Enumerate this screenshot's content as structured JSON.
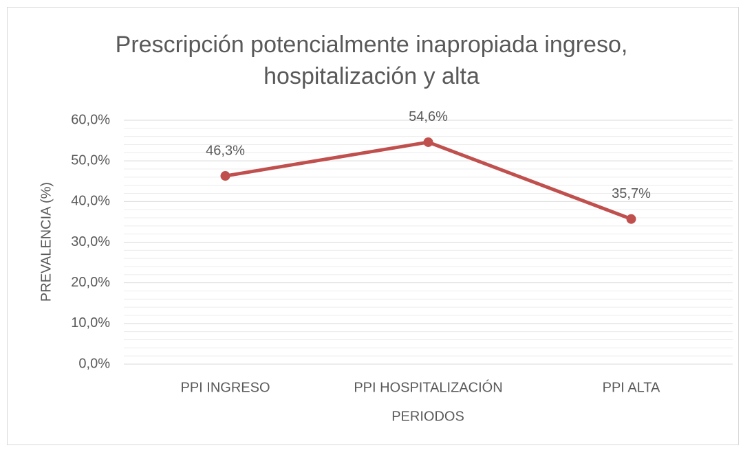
{
  "chart_data": {
    "type": "line",
    "title": "Prescripción potencialmente inapropiada ingreso, hospitalización y alta",
    "x_label": "PERIODOS",
    "y_label": "PREVALENCIA (%)",
    "categories": [
      "PPI INGRESO",
      "PPI HOSPITALIZACIÓN",
      "PPI ALTA"
    ],
    "values": [
      46.3,
      54.6,
      35.7
    ],
    "value_labels": [
      "46,3%",
      "54,6%",
      "35,7%"
    ],
    "color": "#c0504d",
    "ylim": [
      0,
      60
    ],
    "yticks": [
      {
        "value": 0,
        "label": "0,0%"
      },
      {
        "value": 10,
        "label": "10,0%"
      },
      {
        "value": 20,
        "label": "20,0%"
      },
      {
        "value": 30,
        "label": "30,0%"
      },
      {
        "value": 40,
        "label": "40,0%"
      },
      {
        "value": 50,
        "label": "50,0%"
      },
      {
        "value": 60,
        "label": "60,0%"
      }
    ],
    "grid": true,
    "minor_grid": true
  }
}
